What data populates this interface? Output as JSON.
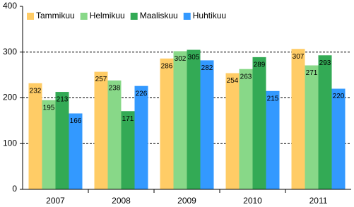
{
  "chart_data": {
    "type": "bar",
    "categories": [
      "2007",
      "2008",
      "2009",
      "2010",
      "2011"
    ],
    "series": [
      {
        "name": "Tammikuu",
        "color": "#ffcc66",
        "values": [
          232,
          257,
          286,
          254,
          307
        ]
      },
      {
        "name": "Helmikuu",
        "color": "#88d888",
        "values": [
          195,
          238,
          302,
          263,
          271
        ]
      },
      {
        "name": "Maaliskuu",
        "color": "#33aa55",
        "values": [
          213,
          171,
          305,
          289,
          293
        ]
      },
      {
        "name": "Huhtikuu",
        "color": "#3399ff",
        "values": [
          166,
          226,
          282,
          215,
          220
        ]
      }
    ],
    "ylim": [
      0,
      400
    ],
    "yticks": [
      0,
      100,
      200,
      300,
      400
    ],
    "grid": true,
    "legend": "top-left"
  }
}
